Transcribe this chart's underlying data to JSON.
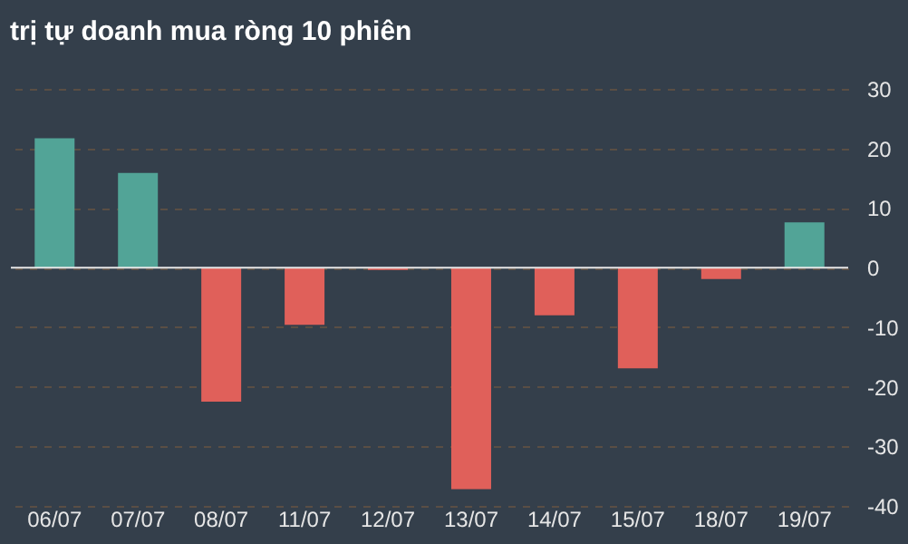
{
  "chart_data": {
    "type": "bar",
    "title": "trị tự doanh mua ròng 10 phiên",
    "categories": [
      "06/07",
      "07/07",
      "08/07",
      "11/07",
      "12/07",
      "13/07",
      "14/07",
      "15/07",
      "18/07",
      "19/07"
    ],
    "values": [
      21.7,
      15.9,
      -22.5,
      -9.6,
      -0.4,
      -37.2,
      -8.0,
      -16.9,
      -1.9,
      7.6
    ],
    "colors": [
      "#52a497",
      "#52a497",
      "#e0605a",
      "#e0605a",
      "#e0605a",
      "#e0605a",
      "#e0605a",
      "#e0605a",
      "#e0605a",
      "#52a497"
    ],
    "ylim": [
      -40,
      30
    ],
    "yticks": [
      -40,
      -30,
      -20,
      -10,
      0,
      10,
      20,
      30
    ],
    "grid": "y"
  }
}
